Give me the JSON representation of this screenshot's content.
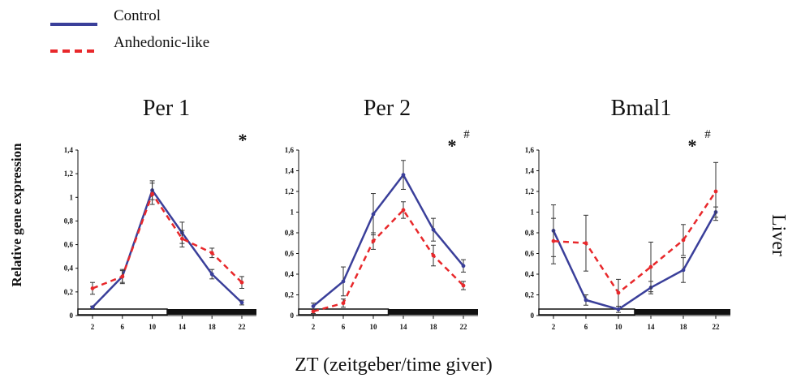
{
  "legend": [
    {
      "label": "Control",
      "color": "#3a3f9a",
      "style": "solid"
    },
    {
      "label": "Anhedonic-like",
      "color": "#e8282b",
      "style": "dashed"
    }
  ],
  "xlabel": "ZT (zeitgeber/time giver)",
  "ylabel": "Relative gene expression",
  "side_label": "Liver",
  "chart_data": [
    {
      "type": "line",
      "title": "Per 1",
      "x": [
        2,
        6,
        10,
        14,
        18,
        22
      ],
      "ylim": [
        0,
        1.4
      ],
      "yticks": [
        "0",
        "0,2",
        "0,4",
        "0,6",
        "0,8",
        "1",
        "1,2",
        "1,4"
      ],
      "light_dark_bar": {
        "light": [
          0,
          12
        ],
        "dark": [
          12,
          24
        ]
      },
      "significance": [
        "*"
      ],
      "series": [
        {
          "name": "Control",
          "values": [
            0.07,
            0.33,
            1.06,
            0.7,
            0.35,
            0.11
          ],
          "errors": [
            0.01,
            0.05,
            0.08,
            0.09,
            0.04,
            0.02
          ]
        },
        {
          "name": "Anhedonic-like",
          "values": [
            0.23,
            0.33,
            1.03,
            0.65,
            0.53,
            0.28
          ],
          "errors": [
            0.05,
            0.06,
            0.09,
            0.07,
            0.04,
            0.05
          ]
        }
      ]
    },
    {
      "type": "line",
      "title": "Per 2",
      "x": [
        2,
        6,
        10,
        14,
        18,
        22
      ],
      "ylim": [
        0,
        1.6
      ],
      "yticks": [
        "0",
        "0,2",
        "0,4",
        "0,6",
        "0,8",
        "1",
        "1,2",
        "1,4",
        "1,6"
      ],
      "light_dark_bar": {
        "light": [
          0,
          12
        ],
        "dark": [
          12,
          24
        ]
      },
      "significance": [
        "*",
        "#"
      ],
      "series": [
        {
          "name": "Control",
          "values": [
            0.09,
            0.33,
            0.98,
            1.36,
            0.83,
            0.48
          ],
          "errors": [
            0.03,
            0.14,
            0.2,
            0.14,
            0.11,
            0.06
          ]
        },
        {
          "name": "Anhedonic-like",
          "values": [
            0.04,
            0.12,
            0.72,
            1.02,
            0.58,
            0.29
          ],
          "errors": [
            0.02,
            0.04,
            0.08,
            0.08,
            0.1,
            0.04
          ]
        }
      ]
    },
    {
      "type": "line",
      "title": "Bmal1",
      "x": [
        2,
        6,
        10,
        14,
        18,
        22
      ],
      "ylim": [
        0,
        1.6
      ],
      "yticks": [
        "0",
        "0,2",
        "0,4",
        "0,6",
        "0,8",
        "1",
        "1,2",
        "1,4",
        "1,6"
      ],
      "light_dark_bar": {
        "light": [
          0,
          12
        ],
        "dark": [
          12,
          24
        ]
      },
      "significance": [
        "*",
        "#"
      ],
      "series": [
        {
          "name": "Control",
          "values": [
            0.82,
            0.15,
            0.06,
            0.27,
            0.44,
            1.0
          ],
          "errors": [
            0.25,
            0.05,
            0.03,
            0.06,
            0.12,
            0.05
          ]
        },
        {
          "name": "Anhedonic-like",
          "values": [
            0.72,
            0.7,
            0.22,
            0.47,
            0.73,
            1.2
          ],
          "errors": [
            0.22,
            0.27,
            0.13,
            0.24,
            0.15,
            0.28
          ]
        }
      ]
    }
  ]
}
